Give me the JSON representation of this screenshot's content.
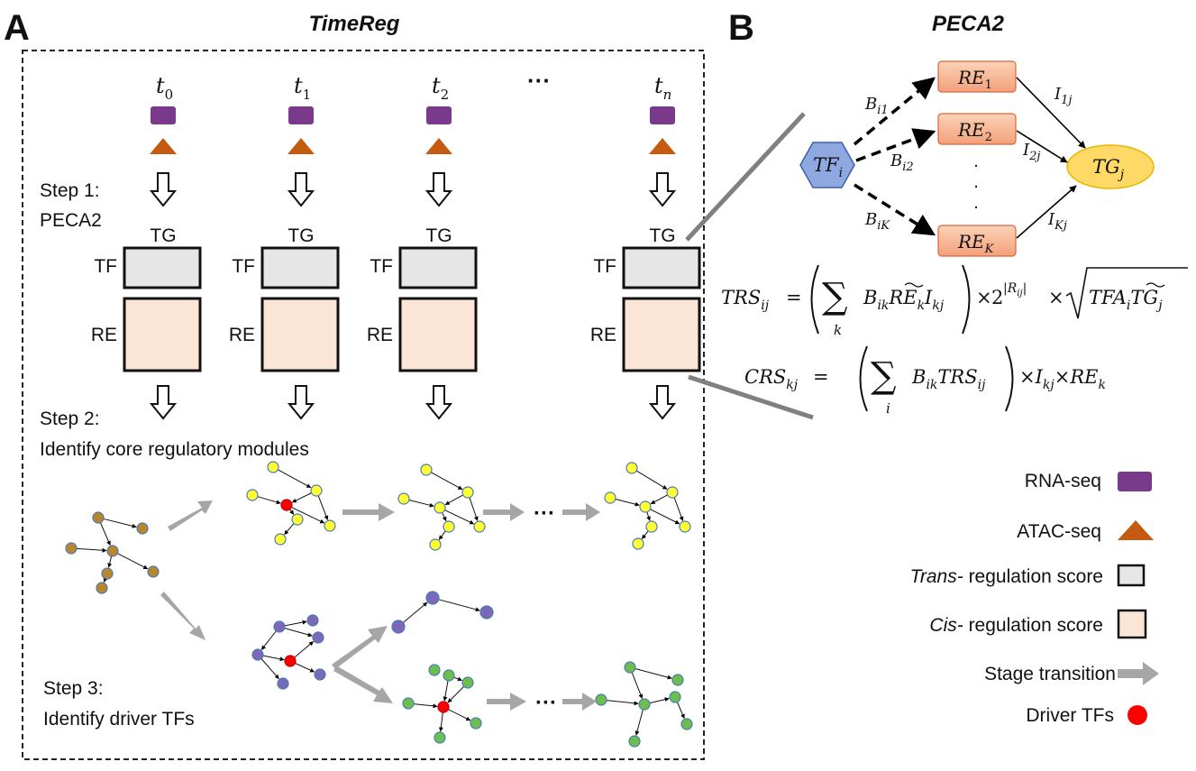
{
  "panel_a": {
    "letter": "A",
    "title": "TimeReg",
    "timepoints": [
      {
        "base": "t",
        "sub": "0"
      },
      {
        "base": "t",
        "sub": "1"
      },
      {
        "base": "t",
        "sub": "2"
      },
      {
        "base": "",
        "sub": "",
        "text": "···"
      },
      {
        "base": "t",
        "sub": "n"
      }
    ],
    "step1": [
      "Step 1:",
      "PECA2"
    ],
    "matrix": {
      "tg": "TG",
      "tf": "TF",
      "re": "RE"
    },
    "step2": [
      "Step 2:",
      "Identify core regulatory modules"
    ],
    "step3": [
      "Step 3:",
      "Identify driver TFs"
    ],
    "ellipsis": "···"
  },
  "panel_b": {
    "letter": "B",
    "title": "PECA2",
    "tf_node": {
      "base": "TF",
      "sub": "i"
    },
    "tg_node": {
      "base": "TG",
      "sub": "j"
    },
    "re_nodes": [
      {
        "base": "RE",
        "sub": "1"
      },
      {
        "base": "RE",
        "sub": "2"
      },
      {
        "base": "RE",
        "sub": "K"
      }
    ],
    "edge_b": [
      {
        "base": "B",
        "sub": "i1"
      },
      {
        "base": "B",
        "sub": "i2"
      },
      {
        "base": "B",
        "sub": "iK"
      }
    ],
    "edge_i": [
      {
        "base": "I",
        "sub": "1j"
      },
      {
        "base": "I",
        "sub": "2j"
      },
      {
        "base": "I",
        "sub": "Kj"
      }
    ],
    "vdots": ".",
    "formula_trs": {
      "lhs": "TRS",
      "lhs_sub": "ij",
      "eq": "=",
      "sum": "∑",
      "sum_idx": "k",
      "B": "B",
      "B_sub": "ik",
      "RE": "RE",
      "RE_sub": "k",
      "I": "I",
      "I_sub": "kj",
      "times": "×",
      "two": "2",
      "exp": "|R",
      "exp_sub": "ij",
      "exp_end": "|",
      "tfa": "TFA",
      "tfa_sub": "i",
      "tg": "TG",
      "tg_sub": "j"
    },
    "formula_crs": {
      "lhs": "CRS",
      "lhs_sub": "kj",
      "eq": "=",
      "sum": "∑",
      "sum_idx": "i",
      "B": "B",
      "B_sub": "ik",
      "TRS": "TRS",
      "TRS_sub": "ij",
      "times": "×",
      "I": "I",
      "I_sub": "kj",
      "RE": "RE",
      "RE_sub": "k"
    }
  },
  "legend": [
    {
      "key": "rna",
      "text": "RNA-seq",
      "color": "#7a3a8c"
    },
    {
      "key": "atac",
      "text": "ATAC-seq",
      "color": "#c55a11"
    },
    {
      "key": "trans",
      "italic": "Trans-",
      "text": " regulation score",
      "color": "#e6e6e6"
    },
    {
      "key": "cis",
      "italic": "Cis-",
      "text": " regulation score",
      "color": "#fbe5d6"
    },
    {
      "key": "stage",
      "text": "Stage transition",
      "color": "#a6a6a6"
    },
    {
      "key": "driver",
      "text": "Driver TFs",
      "color": "#ff0000"
    }
  ],
  "colors": {
    "rna": "#7a3a8c",
    "atac": "#c55a11",
    "tf_box": "#e6e6e6",
    "re_box": "#fbe5d6",
    "arrow_gray": "#a6a6a6",
    "driver": "#ff0000",
    "brown_node": "#b8862b",
    "yellow_node": "#ffff33",
    "purple_node": "#7b68b8",
    "green_node": "#6cbf4d",
    "tf_hex": "#8fa8e0",
    "re_node": "#f4a582",
    "tg_node": "#ffd966"
  }
}
